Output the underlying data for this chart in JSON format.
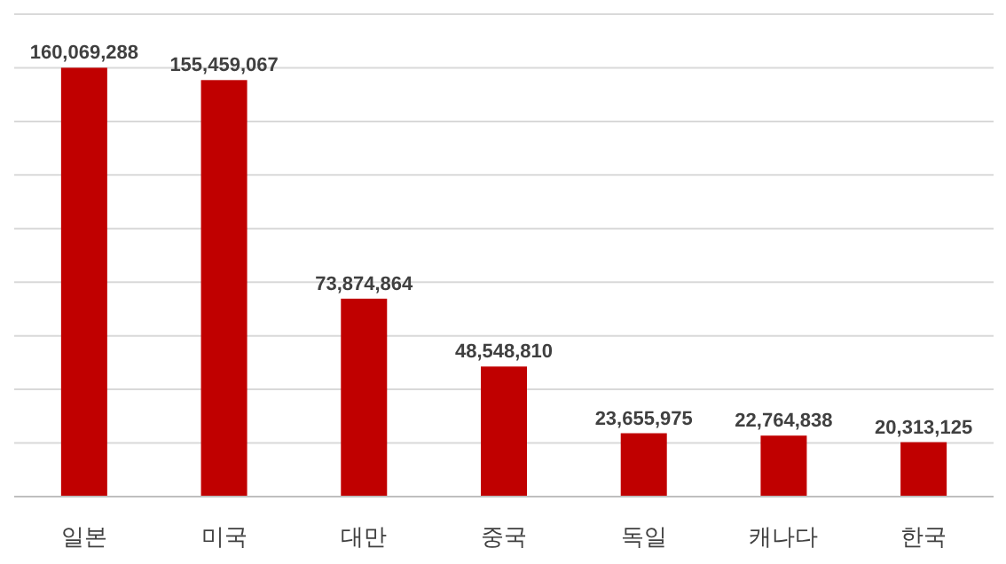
{
  "chart_data": {
    "type": "bar",
    "categories": [
      "일본",
      "미국",
      "대만",
      "중국",
      "독일",
      "캐나다",
      "한국"
    ],
    "values": [
      160069288,
      155459067,
      73874864,
      48548810,
      23655975,
      22764838,
      20313125
    ],
    "value_labels": [
      "160,069,288",
      "155,459,067",
      "73,874,864",
      "48,548,810",
      "23,655,975",
      "22,764,838",
      "20,313,125"
    ],
    "color": "#c00000",
    "grid": "y"
  }
}
